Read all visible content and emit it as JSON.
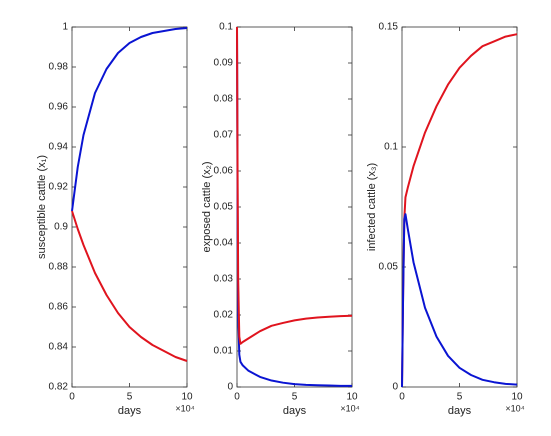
{
  "chart_data": [
    {
      "type": "line",
      "ylabel": "susceptible cattle (x₁)",
      "xlabel": "days",
      "x_exponent_label": "×10⁴",
      "x": [
        0,
        5000,
        10000,
        20000,
        30000,
        40000,
        50000,
        60000,
        70000,
        80000,
        90000,
        100000
      ],
      "series": [
        {
          "color": "#0a14d2",
          "values": [
            0.908,
            0.93,
            0.946,
            0.967,
            0.979,
            0.987,
            0.992,
            0.995,
            0.997,
            0.998,
            0.999,
            0.9995
          ]
        },
        {
          "color": "#e0141e",
          "values": [
            0.908,
            0.899,
            0.891,
            0.877,
            0.866,
            0.857,
            0.85,
            0.845,
            0.841,
            0.838,
            0.835,
            0.833
          ]
        }
      ],
      "xlim": [
        0,
        100000
      ],
      "xticks": [
        0,
        {
          "value": 50000,
          "label": "5"
        },
        {
          "value": 100000,
          "label": "10"
        }
      ],
      "ylim": [
        0.82,
        1
      ],
      "yticks": [
        0.82,
        0.84,
        0.86,
        0.88,
        0.9,
        0.92,
        0.94,
        0.96,
        0.98,
        1
      ]
    },
    {
      "type": "line",
      "ylabel": "exposed cattle (x₂)",
      "xlabel": "days",
      "x_exponent_label": "×10⁴",
      "x": [
        0,
        500,
        1000,
        2000,
        3000,
        5000,
        10000,
        20000,
        30000,
        40000,
        50000,
        60000,
        70000,
        80000,
        90000,
        100000
      ],
      "series": [
        {
          "color": "#0a14d2",
          "values": [
            0.1,
            0.05,
            0.02,
            0.009,
            0.007,
            0.006,
            0.0045,
            0.0028,
            0.0018,
            0.0012,
            0.0008,
            0.0006,
            0.0005,
            0.0004,
            0.0003,
            0.0003
          ]
        },
        {
          "color": "#e0141e",
          "values": [
            0.1,
            0.06,
            0.03,
            0.014,
            0.012,
            0.0125,
            0.0135,
            0.0155,
            0.017,
            0.0178,
            0.0185,
            0.019,
            0.0193,
            0.0195,
            0.0197,
            0.0198
          ]
        }
      ],
      "xlim": [
        0,
        100000
      ],
      "xticks": [
        0,
        {
          "value": 50000,
          "label": "5"
        },
        {
          "value": 100000,
          "label": "10"
        }
      ],
      "ylim": [
        0,
        0.1
      ],
      "yticks": [
        0,
        0.01,
        0.02,
        0.03,
        0.04,
        0.05,
        0.06,
        0.07,
        0.08,
        0.09,
        0.1
      ]
    },
    {
      "type": "line",
      "ylabel": "infected cattle (x₃)",
      "xlabel": "days",
      "x_exponent_label": "×10⁴",
      "x": [
        0,
        1000,
        2000,
        3000,
        5000,
        10000,
        20000,
        30000,
        40000,
        50000,
        60000,
        70000,
        80000,
        90000,
        100000
      ],
      "series": [
        {
          "color": "#e0141e",
          "values": [
            0,
            0.04,
            0.07,
            0.079,
            0.083,
            0.092,
            0.106,
            0.117,
            0.126,
            0.133,
            0.138,
            0.142,
            0.144,
            0.146,
            0.147
          ]
        },
        {
          "color": "#0a14d2",
          "values": [
            0,
            0.04,
            0.07,
            0.072,
            0.066,
            0.052,
            0.033,
            0.021,
            0.013,
            0.008,
            0.005,
            0.003,
            0.002,
            0.0013,
            0.001
          ]
        }
      ],
      "xlim": [
        0,
        100000
      ],
      "xticks": [
        0,
        {
          "value": 50000,
          "label": "5"
        },
        {
          "value": 100000,
          "label": "10"
        }
      ],
      "ylim": [
        0,
        0.15
      ],
      "yticks": [
        0,
        0.05,
        0.1,
        0.15
      ]
    }
  ]
}
